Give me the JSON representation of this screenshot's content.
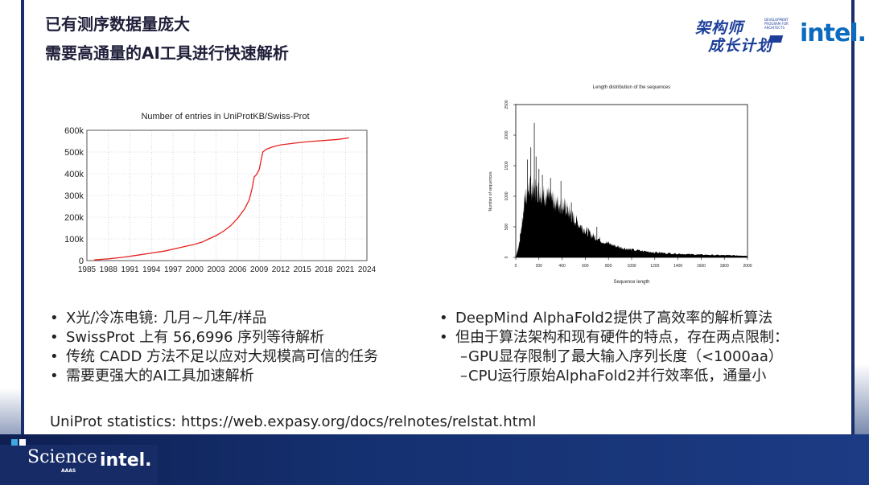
{
  "title": {
    "line1": "已有测序数据量庞大",
    "line2": "需要高通量的AI工具进行快速解析"
  },
  "logos": {
    "program_line1": "架构师",
    "program_line2": "成长计划",
    "program_small": "DEVELOPMENT PROGRAM FOR ARCHITECTS",
    "intel_top": "intel.",
    "science": "Science",
    "aaas": "AAAS",
    "intel_bottom": "intel."
  },
  "chart_data": [
    {
      "type": "line",
      "title": "Number of entries in UniProtKB/Swiss-Prot",
      "xlabel": "",
      "ylabel": "",
      "x_tick_labels": [
        "1985",
        "1988",
        "1991",
        "1994",
        "1997",
        "2000",
        "2003",
        "2006",
        "2009",
        "2012",
        "2015",
        "2018",
        "2021",
        "2024"
      ],
      "y_tick_labels": [
        "0",
        "100k",
        "200k",
        "300k",
        "400k",
        "500k",
        "600k"
      ],
      "xlim": [
        1985,
        2024
      ],
      "ylim": [
        0,
        600000
      ],
      "grid": true,
      "color": "#e8231f",
      "x": [
        1986,
        1988,
        1990,
        1992,
        1994,
        1996,
        1998,
        2000,
        2001,
        2002,
        2003,
        2004,
        2005,
        2006,
        2007,
        2007.6,
        2008,
        2008.3,
        2008.6,
        2009,
        2009.5,
        2010,
        2011,
        2012,
        2014,
        2016,
        2018,
        2020,
        2021.5
      ],
      "y": [
        3000,
        8000,
        15000,
        25000,
        35000,
        45000,
        60000,
        75000,
        85000,
        100000,
        115000,
        135000,
        160000,
        195000,
        240000,
        280000,
        330000,
        385000,
        395000,
        420000,
        500000,
        513000,
        525000,
        533000,
        541000,
        548000,
        553000,
        558000,
        565000
      ]
    },
    {
      "type": "histogram",
      "title": "Length distribution of the sequences",
      "xlabel": "Sequence length",
      "ylabel": "Number of sequences",
      "x_tick_labels": [
        "0",
        "200",
        "400",
        "600",
        "800",
        "1000",
        "1200",
        "1400",
        "1600",
        "1800",
        "2000"
      ],
      "y_tick_labels": [
        "0",
        "500",
        "1000",
        "1500",
        "2000",
        "2500"
      ],
      "xlim": [
        0,
        2000
      ],
      "ylim": [
        0,
        2500
      ],
      "grid": false,
      "color": "#000000",
      "envelope": {
        "x": [
          0,
          20,
          40,
          60,
          80,
          100,
          120,
          140,
          160,
          180,
          200,
          220,
          240,
          260,
          280,
          300,
          320,
          340,
          360,
          380,
          400,
          420,
          440,
          460,
          480,
          500,
          540,
          580,
          620,
          660,
          700,
          760,
          820,
          880,
          940,
          1000,
          1100,
          1200,
          1300,
          1400,
          1500,
          1600,
          1700,
          1800,
          1900,
          2000
        ],
        "y": [
          0,
          150,
          380,
          700,
          1100,
          1150,
          1250,
          1200,
          1250,
          1170,
          1180,
          1120,
          1100,
          1080,
          1060,
          1040,
          1020,
          980,
          960,
          940,
          920,
          900,
          850,
          790,
          740,
          690,
          600,
          520,
          450,
          390,
          340,
          280,
          230,
          190,
          160,
          135,
          110,
          90,
          75,
          65,
          55,
          48,
          42,
          38,
          35,
          30
        ]
      },
      "spikes": [
        {
          "x": 40,
          "y": 390
        },
        {
          "x": 100,
          "y": 1600
        },
        {
          "x": 130,
          "y": 1800
        },
        {
          "x": 160,
          "y": 2200
        },
        {
          "x": 175,
          "y": 1650
        },
        {
          "x": 200,
          "y": 1450
        },
        {
          "x": 230,
          "y": 1350
        },
        {
          "x": 300,
          "y": 1300
        },
        {
          "x": 390,
          "y": 1250
        },
        {
          "x": 480,
          "y": 900
        },
        {
          "x": 700,
          "y": 500
        }
      ]
    }
  ],
  "bullets_left": [
    "X光/冷冻电镜: 几月~几年/样品",
    "SwissProt 上有 56,6996 序列等待解析",
    "传统 CADD 方法不足以应对大规模高可信的任务",
    "需要更强大的AI工具加速解析"
  ],
  "bullets_right": [
    "DeepMind AlphaFold2提供了高效率的解析算法",
    "但由于算法架构和现有硬件的特点，存在两点限制："
  ],
  "bullets_right_sub": [
    "GPU显存限制了最大输入序列长度（<1000aa）",
    "CPU运行原始AlphaFold2并行效率低，通量小"
  ],
  "bullet_symbol": "•",
  "sub_symbol": "–",
  "source": "UniProt statistics: https://web.expasy.org/docs/relnotes/relstat.html"
}
